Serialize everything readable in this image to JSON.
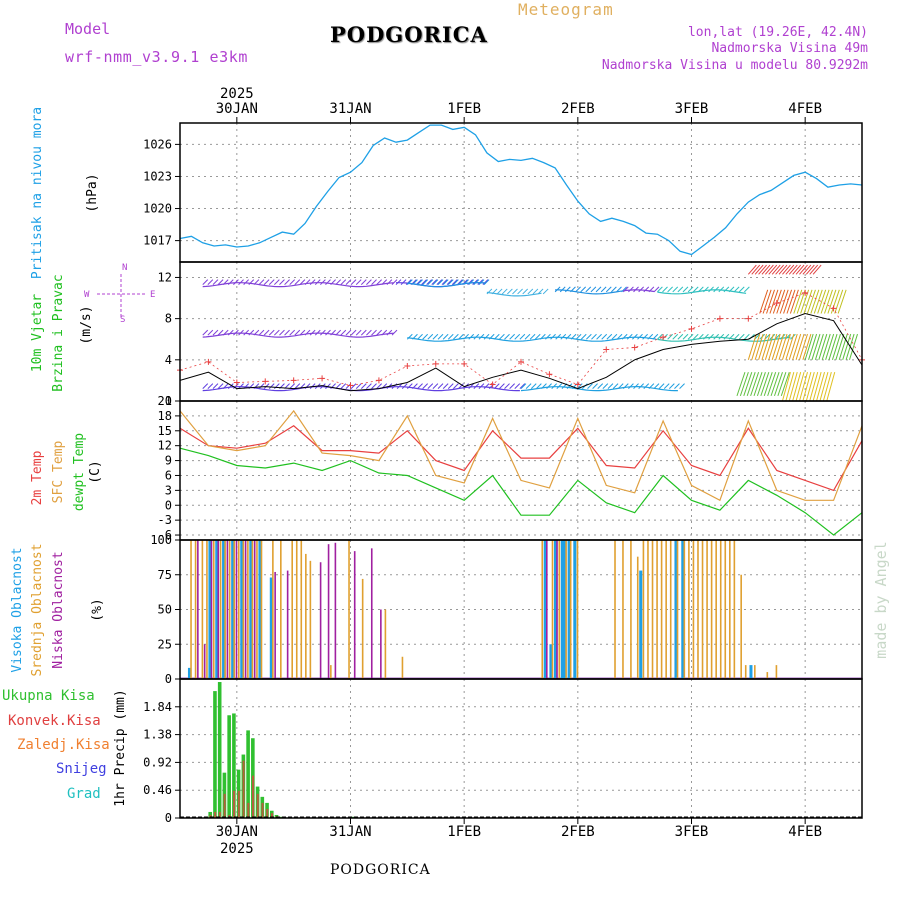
{
  "header": {
    "meteogram_label": "Meteogram",
    "station": "PODGORICA",
    "model_label": "Model",
    "model_name": "wrf-nmm_v3.9.1 e3km",
    "lonlat": "lon,lat (19.26E, 42.4N)",
    "elevation": "Nadmorska Visina 49m",
    "model_elevation": "Nadmorska Visina u modelu 80.9292m"
  },
  "footer": {
    "station": "PODGORICA",
    "credit": "made by Angel"
  },
  "colors": {
    "pressure": "#1ea0e6",
    "temp2m": "#e84040",
    "sfc": "#e0a040",
    "dewpt": "#20c020",
    "high_cloud": "#1ea0e6",
    "mid_cloud": "#e0a030",
    "low_cloud": "#a020a0",
    "precip_total": "#30c030",
    "precip_conv": "#e04040",
    "precip_frz": "#f08030",
    "snow": "#4040e0",
    "hail": "#20c0c0",
    "purple_text": "#b040d0",
    "orange_text": "#e0b060"
  },
  "chart_data": [
    {
      "type": "line",
      "panel": "pressure",
      "ylabel_main": "Pritisak na nivou mora",
      "ylabel_unit": "(hPa)",
      "ylim": [
        1015,
        1028
      ],
      "yticks": [
        1017,
        1020,
        1023,
        1026
      ],
      "x_days": [
        0,
        0.1,
        0.2,
        0.3,
        0.4,
        0.5,
        0.6,
        0.7,
        0.8,
        0.9,
        1.0,
        1.1,
        1.2,
        1.3,
        1.4,
        1.5,
        1.6,
        1.7,
        1.8,
        1.9,
        2.0,
        2.1,
        2.2,
        2.3,
        2.4,
        2.5,
        2.6,
        2.7,
        2.8,
        2.9,
        3.0,
        3.1,
        3.2,
        3.3,
        3.4,
        3.5,
        3.6,
        3.7,
        3.8,
        3.9,
        4.0,
        4.1,
        4.2,
        4.3,
        4.4,
        4.5,
        4.6,
        4.7,
        4.8,
        4.9,
        5.0,
        5.1,
        5.2,
        5.3,
        5.4,
        5.5,
        5.6,
        5.7,
        5.8,
        5.9,
        6.0
      ],
      "values": [
        1017.2,
        1017.4,
        1016.8,
        1016.5,
        1016.6,
        1016.4,
        1016.5,
        1016.8,
        1017.3,
        1017.8,
        1017.6,
        1018.6,
        1020.2,
        1021.6,
        1022.9,
        1023.4,
        1024.3,
        1025.9,
        1026.6,
        1026.2,
        1026.4,
        1027.1,
        1027.8,
        1027.8,
        1027.4,
        1027.6,
        1026.9,
        1025.2,
        1024.4,
        1024.6,
        1024.5,
        1024.7,
        1024.3,
        1023.8,
        1022.2,
        1020.7,
        1019.5,
        1018.8,
        1019.1,
        1018.8,
        1018.4,
        1017.7,
        1017.6,
        1017.0,
        1016.0,
        1015.7,
        1016.5,
        1017.3,
        1018.2,
        1019.5,
        1020.6,
        1021.3,
        1021.7,
        1022.4,
        1023.1,
        1023.4,
        1022.8,
        1022.0,
        1022.2,
        1022.3,
        1022.2
      ]
    },
    {
      "type": "line",
      "panel": "wind",
      "ylabel_main": "10m Vjetar",
      "ylabel_sub": "Brzina i Pravac",
      "ylabel_unit": "(m/s)",
      "legend_compass": "N",
      "legend_w": "W",
      "legend_e": "E",
      "legend_s": "S",
      "ylim": [
        0,
        13.5
      ],
      "yticks": [
        0,
        4,
        8,
        12
      ],
      "x_days": [
        0,
        0.25,
        0.5,
        0.75,
        1.0,
        1.25,
        1.5,
        1.75,
        2.0,
        2.25,
        2.5,
        2.75,
        3.0,
        3.25,
        3.5,
        3.75,
        4.0,
        4.25,
        4.5,
        4.75,
        5.0,
        5.25,
        5.5,
        5.75,
        6.0
      ],
      "speed": [
        2.0,
        2.8,
        1.2,
        1.4,
        1.2,
        1.5,
        1.0,
        1.2,
        1.8,
        3.2,
        1.4,
        2.3,
        3.0,
        2.2,
        1.2,
        2.3,
        4.0,
        5.0,
        5.5,
        5.8,
        6.0,
        7.5,
        8.5,
        7.8,
        3.5
      ],
      "gust": [
        3.0,
        3.8,
        1.8,
        1.9,
        2.0,
        2.2,
        1.5,
        2.0,
        3.4,
        3.6,
        3.6,
        1.6,
        3.8,
        2.6,
        1.6,
        5.0,
        5.2,
        6.2,
        7.0,
        8.0,
        8.0,
        9.5,
        10.5,
        9.0,
        4.0
      ]
    },
    {
      "type": "line",
      "panel": "temperature",
      "ylabel_2m": "2m Temp",
      "ylabel_sfc": "SFC Temp",
      "ylabel_dew": "dewpt Temp",
      "ylabel_unit": "(C)",
      "ylim": [
        -7,
        21
      ],
      "yticks": [
        -6,
        -3,
        0,
        3,
        6,
        9,
        12,
        15,
        18,
        21
      ],
      "x_days": [
        0,
        0.25,
        0.5,
        0.75,
        1.0,
        1.25,
        1.5,
        1.75,
        2.0,
        2.25,
        2.5,
        2.75,
        3.0,
        3.25,
        3.5,
        3.75,
        4.0,
        4.25,
        4.5,
        4.75,
        5.0,
        5.25,
        5.5,
        5.75,
        6.0
      ],
      "temp2m": [
        15.5,
        12.0,
        11.5,
        12.5,
        16.0,
        11.0,
        11.0,
        10.5,
        15.0,
        9.0,
        7.0,
        15.0,
        9.5,
        9.5,
        15.5,
        8.0,
        7.5,
        15.0,
        8.0,
        6.0,
        15.5,
        7.0,
        5.0,
        3.0,
        13.0
      ],
      "sfc": [
        19.0,
        12.0,
        11.0,
        12.0,
        19.0,
        10.5,
        10.0,
        9.0,
        18.0,
        6.0,
        4.5,
        17.5,
        5.0,
        3.5,
        17.5,
        4.0,
        2.5,
        17.0,
        4.0,
        1.0,
        17.0,
        3.0,
        1.0,
        1.0,
        16.0
      ],
      "dewpt": [
        11.5,
        10.0,
        8.0,
        7.5,
        8.5,
        7.0,
        9.0,
        6.5,
        6.0,
        3.5,
        1.0,
        6.0,
        -2.0,
        -2.0,
        5.0,
        0.5,
        -1.5,
        6.0,
        1.0,
        -1.0,
        5.0,
        2.0,
        -1.5,
        -6.0,
        -1.5
      ]
    },
    {
      "type": "bar",
      "panel": "clouds",
      "ylabel_high": "Visoka Oblacnost",
      "ylabel_mid": "Srednja Oblacnost",
      "ylabel_low": "Niska Oblacnost",
      "ylabel_unit": "(%)",
      "ylim": [
        0,
        100
      ],
      "yticks": [
        0,
        25,
        50,
        75,
        100
      ],
      "bars": [
        {
          "t": 0.07,
          "layer": "high",
          "v": 8
        },
        {
          "t": 0.09,
          "layer": "mid",
          "v": 100
        },
        {
          "t": 0.13,
          "layer": "mid",
          "v": 100
        },
        {
          "t": 0.15,
          "layer": "low",
          "v": 100
        },
        {
          "t": 0.19,
          "layer": "mid",
          "v": 100
        },
        {
          "t": 0.21,
          "layer": "low",
          "v": 25
        },
        {
          "t": 0.23,
          "layer": "mid",
          "v": 100
        },
        {
          "t": 0.25,
          "layer": "high",
          "v": 100
        },
        {
          "t": 0.27,
          "layer": "low",
          "v": 100
        },
        {
          "t": 0.29,
          "layer": "mid",
          "v": 100
        },
        {
          "t": 0.31,
          "layer": "high",
          "v": 100
        },
        {
          "t": 0.33,
          "layer": "low",
          "v": 100
        },
        {
          "t": 0.35,
          "layer": "mid",
          "v": 100
        },
        {
          "t": 0.37,
          "layer": "high",
          "v": 100
        },
        {
          "t": 0.39,
          "layer": "mid",
          "v": 100
        },
        {
          "t": 0.41,
          "layer": "low",
          "v": 100
        },
        {
          "t": 0.43,
          "layer": "mid",
          "v": 100
        },
        {
          "t": 0.45,
          "layer": "high",
          "v": 100
        },
        {
          "t": 0.47,
          "layer": "mid",
          "v": 100
        },
        {
          "t": 0.49,
          "layer": "low",
          "v": 100
        },
        {
          "t": 0.51,
          "layer": "mid",
          "v": 100
        },
        {
          "t": 0.53,
          "layer": "high",
          "v": 100
        },
        {
          "t": 0.55,
          "layer": "mid",
          "v": 100
        },
        {
          "t": 0.57,
          "layer": "low",
          "v": 100
        },
        {
          "t": 0.59,
          "layer": "mid",
          "v": 100
        },
        {
          "t": 0.61,
          "layer": "high",
          "v": 100
        },
        {
          "t": 0.63,
          "layer": "mid",
          "v": 100
        },
        {
          "t": 0.65,
          "layer": "low",
          "v": 100
        },
        {
          "t": 0.67,
          "layer": "mid",
          "v": 100
        },
        {
          "t": 0.69,
          "layer": "high",
          "v": 100
        },
        {
          "t": 0.71,
          "layer": "mid",
          "v": 100
        },
        {
          "t": 0.79,
          "layer": "high",
          "v": 73
        },
        {
          "t": 0.81,
          "layer": "mid",
          "v": 100
        },
        {
          "t": 0.83,
          "layer": "low",
          "v": 77
        },
        {
          "t": 0.88,
          "layer": "mid",
          "v": 100
        },
        {
          "t": 0.94,
          "layer": "low",
          "v": 78
        },
        {
          "t": 0.98,
          "layer": "mid",
          "v": 100
        },
        {
          "t": 1.02,
          "layer": "mid",
          "v": 100
        },
        {
          "t": 1.06,
          "layer": "mid",
          "v": 100
        },
        {
          "t": 1.1,
          "layer": "mid",
          "v": 90
        },
        {
          "t": 1.14,
          "layer": "mid",
          "v": 85
        },
        {
          "t": 1.23,
          "layer": "low",
          "v": 84
        },
        {
          "t": 1.3,
          "layer": "low",
          "v": 97
        },
        {
          "t": 1.32,
          "layer": "mid",
          "v": 10
        },
        {
          "t": 1.36,
          "layer": "low",
          "v": 98
        },
        {
          "t": 1.48,
          "layer": "mid",
          "v": 100
        },
        {
          "t": 1.53,
          "layer": "low",
          "v": 92
        },
        {
          "t": 1.6,
          "layer": "mid",
          "v": 72
        },
        {
          "t": 1.68,
          "layer": "low",
          "v": 94
        },
        {
          "t": 1.76,
          "layer": "low",
          "v": 50
        },
        {
          "t": 1.8,
          "layer": "mid",
          "v": 50
        },
        {
          "t": 1.95,
          "layer": "mid",
          "v": 16
        },
        {
          "t": 3.18,
          "layer": "mid",
          "v": 100
        },
        {
          "t": 3.2,
          "layer": "high",
          "v": 100
        },
        {
          "t": 3.22,
          "layer": "low",
          "v": 100
        },
        {
          "t": 3.25,
          "layer": "high",
          "v": 25
        },
        {
          "t": 3.27,
          "layer": "mid",
          "v": 100
        },
        {
          "t": 3.29,
          "layer": "high",
          "v": 100
        },
        {
          "t": 3.31,
          "layer": "low",
          "v": 100
        },
        {
          "t": 3.33,
          "layer": "mid",
          "v": 100
        },
        {
          "t": 3.35,
          "layer": "high",
          "v": 100
        },
        {
          "t": 3.37,
          "layer": "high",
          "v": 100
        },
        {
          "t": 3.39,
          "layer": "mid",
          "v": 100
        },
        {
          "t": 3.41,
          "layer": "high",
          "v": 100
        },
        {
          "t": 3.43,
          "layer": "mid",
          "v": 100
        },
        {
          "t": 3.46,
          "layer": "high",
          "v": 100
        },
        {
          "t": 3.49,
          "layer": "mid",
          "v": 100
        },
        {
          "t": 3.82,
          "layer": "mid",
          "v": 100
        },
        {
          "t": 3.89,
          "layer": "mid",
          "v": 100
        },
        {
          "t": 3.96,
          "layer": "mid",
          "v": 100
        },
        {
          "t": 4.02,
          "layer": "mid",
          "v": 88
        },
        {
          "t": 4.04,
          "layer": "high",
          "v": 78
        },
        {
          "t": 4.07,
          "layer": "mid",
          "v": 100
        },
        {
          "t": 4.11,
          "layer": "mid",
          "v": 100
        },
        {
          "t": 4.15,
          "layer": "mid",
          "v": 100
        },
        {
          "t": 4.19,
          "layer": "mid",
          "v": 100
        },
        {
          "t": 4.23,
          "layer": "mid",
          "v": 100
        },
        {
          "t": 4.27,
          "layer": "mid",
          "v": 100
        },
        {
          "t": 4.31,
          "layer": "mid",
          "v": 100
        },
        {
          "t": 4.35,
          "layer": "high",
          "v": 100
        },
        {
          "t": 4.37,
          "layer": "mid",
          "v": 100
        },
        {
          "t": 4.41,
          "layer": "high",
          "v": 100
        },
        {
          "t": 4.43,
          "layer": "mid",
          "v": 100
        },
        {
          "t": 4.47,
          "layer": "mid",
          "v": 100
        },
        {
          "t": 4.51,
          "layer": "mid",
          "v": 100
        },
        {
          "t": 4.55,
          "layer": "mid",
          "v": 100
        },
        {
          "t": 4.59,
          "layer": "mid",
          "v": 100
        },
        {
          "t": 4.63,
          "layer": "mid",
          "v": 100
        },
        {
          "t": 4.67,
          "layer": "mid",
          "v": 100
        },
        {
          "t": 4.71,
          "layer": "mid",
          "v": 100
        },
        {
          "t": 4.75,
          "layer": "mid",
          "v": 100
        },
        {
          "t": 4.79,
          "layer": "mid",
          "v": 100
        },
        {
          "t": 4.83,
          "layer": "mid",
          "v": 100
        },
        {
          "t": 4.87,
          "layer": "mid",
          "v": 100
        },
        {
          "t": 4.93,
          "layer": "mid",
          "v": 75
        },
        {
          "t": 4.97,
          "layer": "mid",
          "v": 10
        },
        {
          "t": 5.01,
          "layer": "high",
          "v": 10
        },
        {
          "t": 5.05,
          "layer": "mid",
          "v": 10
        },
        {
          "t": 5.16,
          "layer": "mid",
          "v": 5
        },
        {
          "t": 5.24,
          "layer": "mid",
          "v": 10
        }
      ]
    },
    {
      "type": "bar",
      "panel": "precip",
      "ylabel_total": "Ukupna Kisa",
      "ylabel_conv": "Konvek.Kisa",
      "ylabel_frz": "Zaledj.Kisa",
      "ylabel_snow": "Snijeg",
      "ylabel_hail": "Grad",
      "ylabel_main": "1hr Precip",
      "ylabel_unit": "(mm)",
      "ylim": [
        0,
        2.3
      ],
      "yticks": [
        0,
        0.46,
        0.92,
        1.38,
        1.84
      ],
      "ytick_labels": [
        "0",
        "0.46",
        "0.92",
        "1.38",
        "1.84"
      ],
      "hours": [
        6,
        7,
        8,
        9,
        10,
        11,
        12,
        13,
        14,
        15,
        16,
        17,
        18,
        19,
        20,
        21,
        22,
        36
      ],
      "total": [
        0.1,
        2.1,
        2.25,
        0.75,
        1.7,
        1.73,
        0.8,
        1.05,
        1.45,
        1.32,
        0.52,
        0.35,
        0.25,
        0.12,
        0.05,
        0.02,
        0.01,
        0.02
      ],
      "conv": [
        0.05,
        0.1,
        0.1,
        0.4,
        0.05,
        0.45,
        0.45,
        0.95,
        0.25,
        0.7,
        0.4,
        0.25,
        0.15,
        0.08,
        0.03,
        0.01,
        0.0,
        0.0
      ]
    }
  ],
  "axis": {
    "year_top": "2025",
    "year_bottom": "2025",
    "day_labels": [
      "30JAN",
      "31JAN",
      "1FEB",
      "2FEB",
      "3FEB",
      "4FEB"
    ],
    "day_offsets": [
      0.5,
      1.5,
      2.5,
      3.5,
      4.5,
      5.5
    ],
    "range_days": [
      0,
      6
    ]
  }
}
